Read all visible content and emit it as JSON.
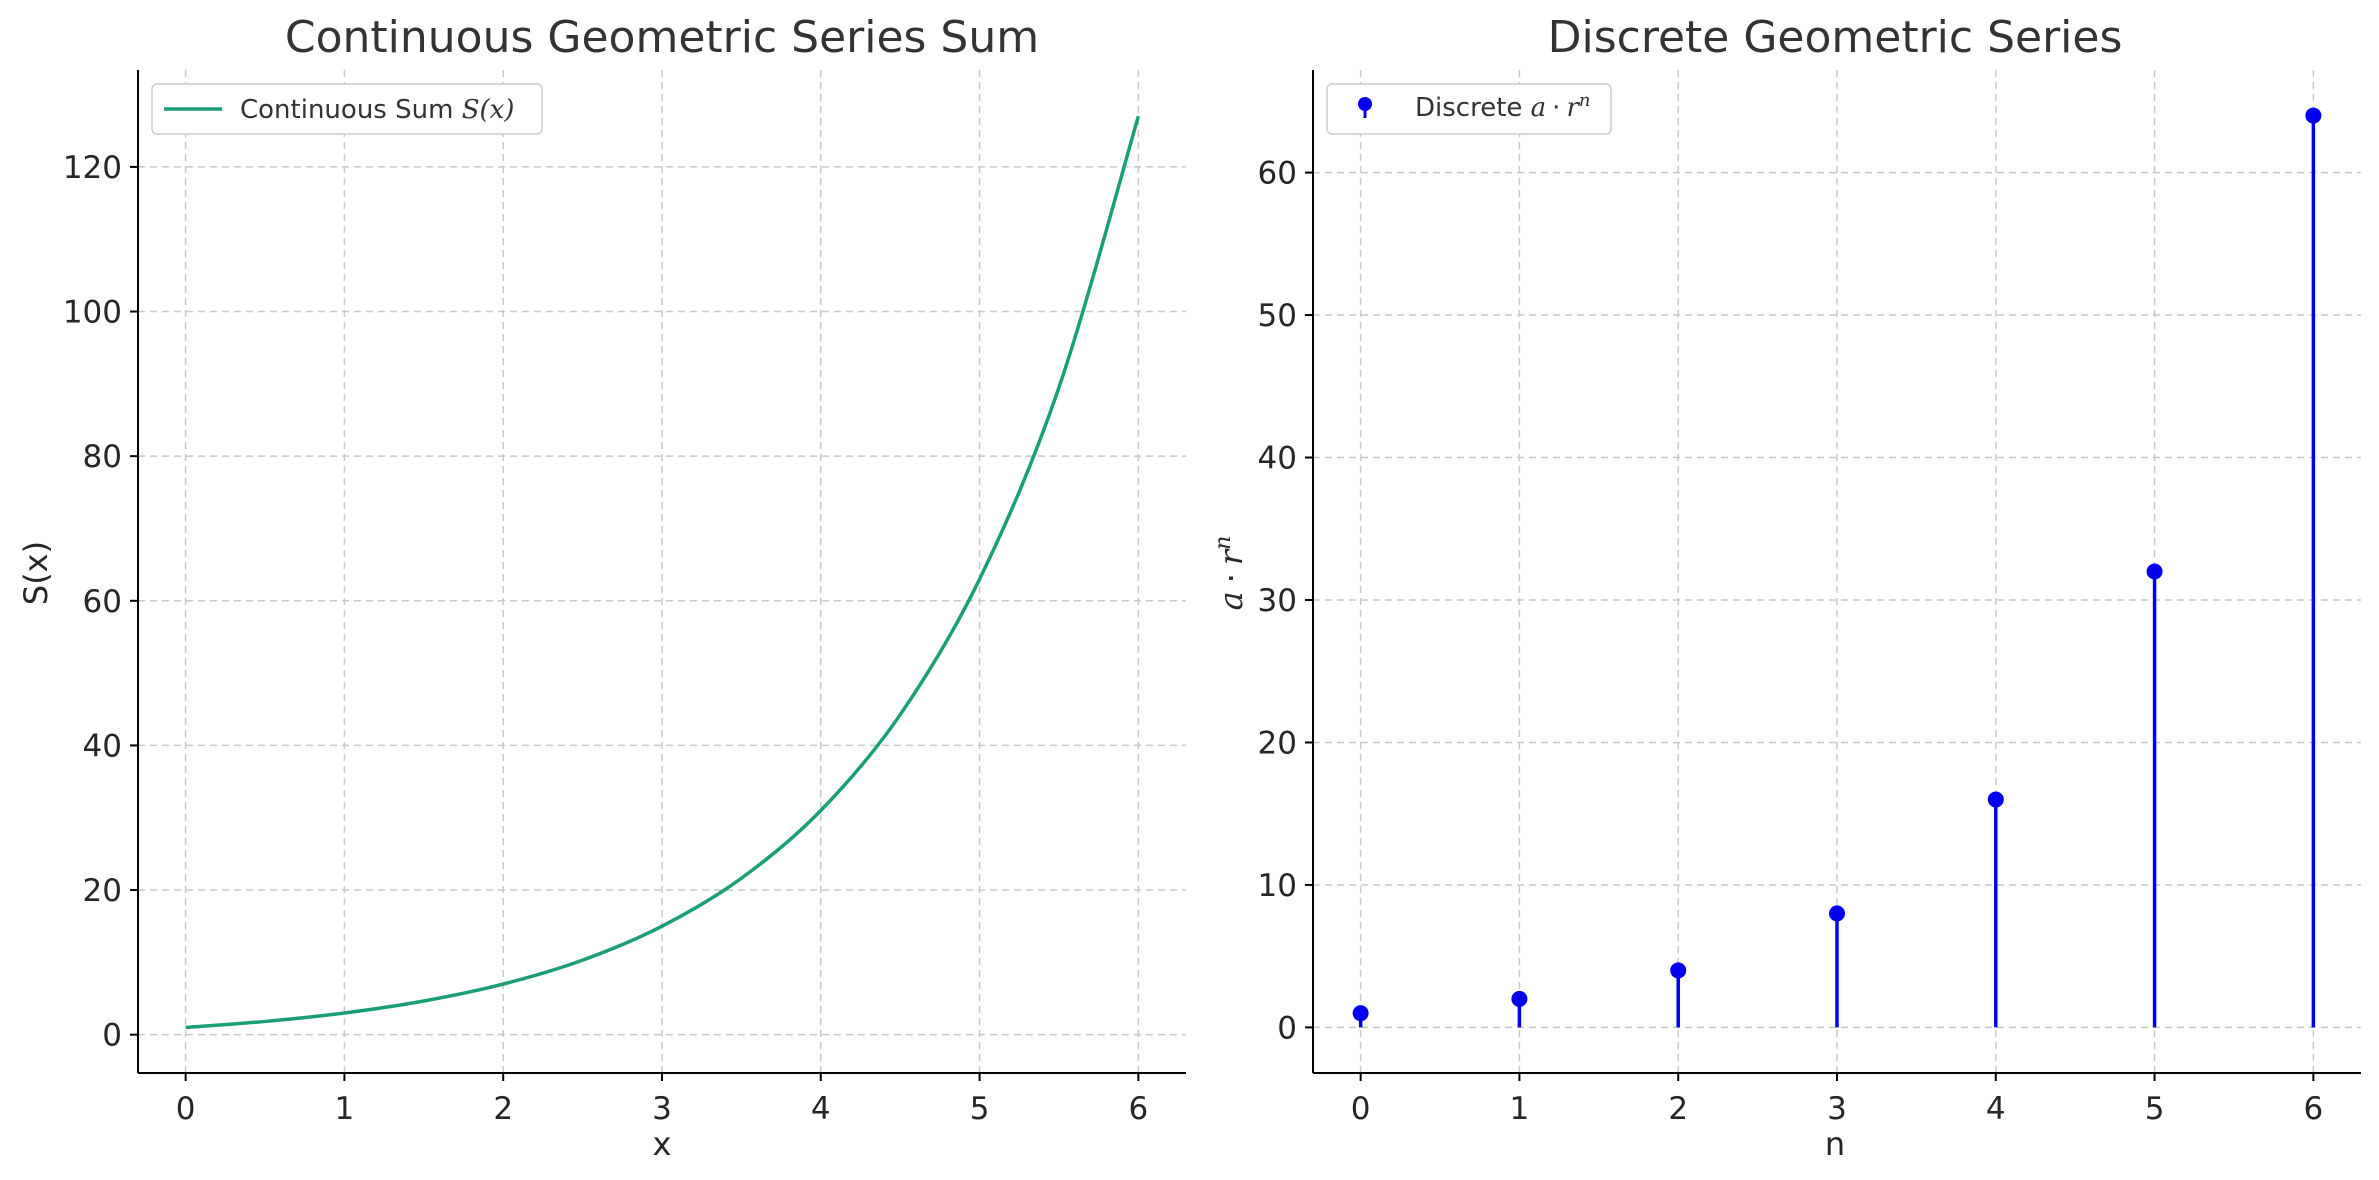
{
  "chart_data": [
    {
      "type": "line",
      "title": "Continuous Geometric Series Sum",
      "xlabel": "x",
      "ylabel": "S(x)",
      "xlim": [
        -0.3,
        6.3
      ],
      "ylim": [
        -5.3,
        133.4
      ],
      "xticks": [
        0,
        1,
        2,
        3,
        4,
        5,
        6
      ],
      "yticks": [
        0,
        20,
        40,
        60,
        80,
        100,
        120
      ],
      "grid": true,
      "legend": {
        "placement": "top-left",
        "entries": [
          {
            "label_prefix": "Continuous Sum ",
            "label_math": "S(x)",
            "color": "#1a9e78"
          }
        ]
      },
      "series": [
        {
          "color": "#1a9e78",
          "x": [
            0,
            0.5,
            1,
            1.5,
            2,
            2.5,
            3,
            3.5,
            4,
            4.5,
            5,
            5.5,
            6
          ],
          "y": [
            1.0,
            1.83,
            3.0,
            4.66,
            7.0,
            10.31,
            15.0,
            21.63,
            31.0,
            44.25,
            63.0,
            89.51,
            127.0
          ]
        }
      ]
    },
    {
      "type": "stem",
      "title": "Discrete Geometric Series",
      "xlabel": "n",
      "ylabel_parts": {
        "a": "a",
        "dot": "·",
        "r": "r",
        "sup": "n"
      },
      "xlim": [
        -0.3,
        6.3
      ],
      "ylim": [
        -3.2,
        67.2
      ],
      "xticks": [
        0,
        1,
        2,
        3,
        4,
        5,
        6
      ],
      "yticks": [
        0,
        10,
        20,
        30,
        40,
        50,
        60
      ],
      "grid": true,
      "legend": {
        "placement": "top-left",
        "entries": [
          {
            "label_prefix": "Discrete ",
            "math_a": "a",
            "math_dot": "·",
            "math_r": "r",
            "math_sup": "n",
            "color": "#0000ee"
          }
        ]
      },
      "series": [
        {
          "color": "#0000ee",
          "x": [
            0,
            1,
            2,
            3,
            4,
            5,
            6
          ],
          "y": [
            1,
            2,
            4,
            8,
            16,
            32,
            64
          ]
        }
      ]
    }
  ]
}
